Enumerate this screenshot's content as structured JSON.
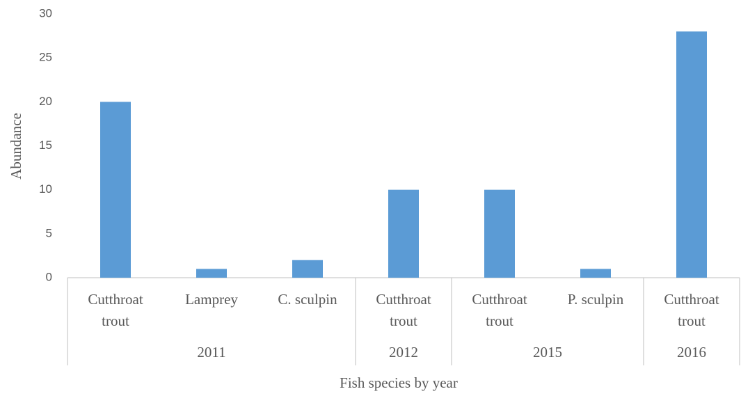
{
  "chart_data": {
    "type": "bar",
    "x_label": "Fish species by year",
    "y_label": "Abundance",
    "groups": [
      {
        "label": "2011",
        "categories": [
          "Cutthroat trout",
          "Lamprey",
          "C. sculpin"
        ],
        "values": [
          20,
          1,
          2
        ]
      },
      {
        "label": "2012",
        "categories": [
          "Cutthroat trout"
        ],
        "values": [
          10
        ]
      },
      {
        "label": "2015",
        "categories": [
          "Cutthroat trout",
          "P. sculpin"
        ],
        "values": [
          10,
          1
        ]
      },
      {
        "label": "2016",
        "categories": [
          "Cutthroat trout"
        ],
        "values": [
          28
        ]
      }
    ],
    "color": "#5b9bd5",
    "ylim": [
      0,
      30
    ],
    "yticks": [
      0,
      5,
      10,
      15,
      20,
      25,
      30
    ],
    "grid": false
  }
}
